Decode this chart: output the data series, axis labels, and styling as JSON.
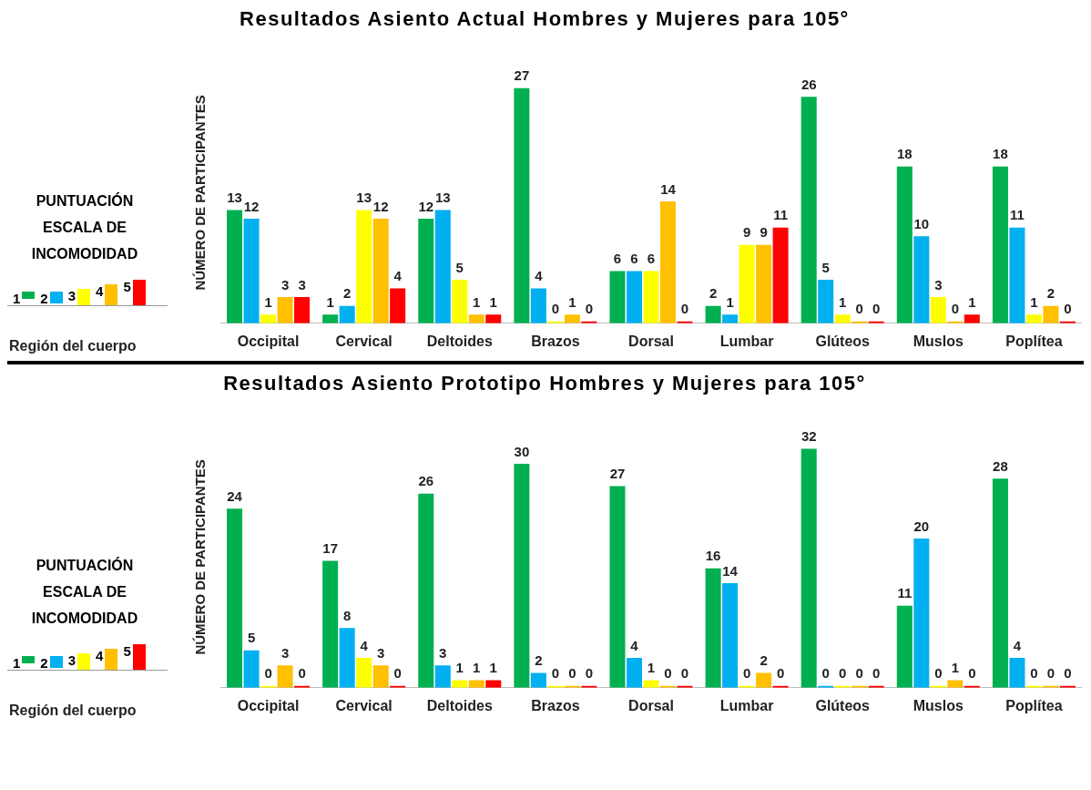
{
  "chart_data": [
    {
      "type": "bar",
      "title": "Resultados Asiento Actual Hombres y Mujeres para 105°",
      "xlabel": "Región del cuerpo",
      "ylabel": "NÚMERO DE PARTICIPANTES",
      "legend_title": "PUNTUACIÓN ESCALA DE INCOMODIDAD",
      "legend": "left",
      "data_labels": true,
      "categories": [
        "Occipital",
        "Cervical",
        "Deltoides",
        "Brazos",
        "Dorsal",
        "Lumbar",
        "Glúteos",
        "Muslos",
        "Poplítea"
      ],
      "series": [
        {
          "name": "1",
          "color": "#00b050",
          "values": [
            13,
            1,
            12,
            27,
            6,
            2,
            26,
            18,
            18
          ]
        },
        {
          "name": "2",
          "color": "#00b0f0",
          "values": [
            12,
            2,
            13,
            4,
            6,
            1,
            5,
            10,
            11
          ]
        },
        {
          "name": "3",
          "color": "#ffff00",
          "values": [
            1,
            13,
            5,
            0,
            6,
            9,
            1,
            3,
            1
          ]
        },
        {
          "name": "4",
          "color": "#ffc000",
          "values": [
            3,
            12,
            1,
            1,
            14,
            9,
            0,
            0,
            2
          ]
        },
        {
          "name": "5",
          "color": "#ff0000",
          "values": [
            3,
            4,
            1,
            0,
            0,
            11,
            0,
            1,
            0
          ]
        }
      ]
    },
    {
      "type": "bar",
      "title": "Resultados Asiento Prototipo Hombres y Mujeres para 105°",
      "xlabel": "Región del cuerpo",
      "ylabel": "NÚMERO DE PARTICIPANTES",
      "legend_title": "PUNTUACIÓN ESCALA DE INCOMODIDAD",
      "legend": "left",
      "data_labels": true,
      "categories": [
        "Occipital",
        "Cervical",
        "Deltoides",
        "Brazos",
        "Dorsal",
        "Lumbar",
        "Glúteos",
        "Muslos",
        "Poplítea"
      ],
      "series": [
        {
          "name": "1",
          "color": "#00b050",
          "values": [
            24,
            17,
            26,
            30,
            27,
            16,
            32,
            11,
            28
          ]
        },
        {
          "name": "2",
          "color": "#00b0f0",
          "values": [
            5,
            8,
            3,
            2,
            4,
            14,
            0,
            20,
            4
          ]
        },
        {
          "name": "3",
          "color": "#ffff00",
          "values": [
            0,
            4,
            1,
            0,
            1,
            0,
            0,
            0,
            0
          ]
        },
        {
          "name": "4",
          "color": "#ffc000",
          "values": [
            3,
            3,
            1,
            0,
            0,
            2,
            0,
            1,
            0
          ]
        },
        {
          "name": "5",
          "color": "#ff0000",
          "values": [
            0,
            0,
            1,
            0,
            0,
            0,
            0,
            0,
            0
          ]
        }
      ]
    }
  ]
}
